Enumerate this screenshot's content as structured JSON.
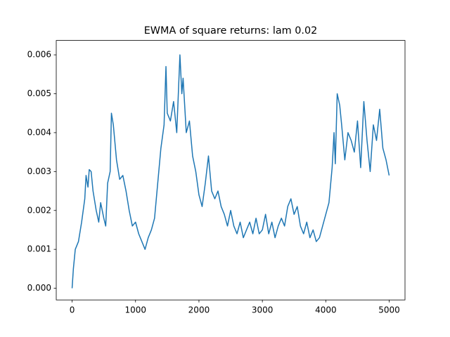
{
  "chart_data": {
    "type": "line",
    "title": "EWMA of square returns: lam 0.02",
    "x": [
      0,
      20,
      50,
      100,
      150,
      200,
      220,
      250,
      270,
      300,
      330,
      380,
      420,
      450,
      500,
      530,
      560,
      600,
      620,
      650,
      700,
      750,
      800,
      850,
      900,
      950,
      1000,
      1050,
      1100,
      1150,
      1200,
      1250,
      1300,
      1350,
      1400,
      1450,
      1480,
      1500,
      1550,
      1600,
      1650,
      1700,
      1730,
      1750,
      1800,
      1850,
      1900,
      1950,
      2000,
      2050,
      2100,
      2150,
      2200,
      2250,
      2300,
      2350,
      2400,
      2450,
      2500,
      2550,
      2600,
      2650,
      2700,
      2750,
      2800,
      2850,
      2900,
      2950,
      3000,
      3050,
      3100,
      3150,
      3200,
      3250,
      3300,
      3350,
      3400,
      3450,
      3500,
      3550,
      3600,
      3650,
      3700,
      3750,
      3800,
      3850,
      3900,
      3950,
      4000,
      4050,
      4100,
      4130,
      4150,
      4180,
      4220,
      4250,
      4300,
      4350,
      4400,
      4450,
      4500,
      4550,
      4600,
      4650,
      4700,
      4750,
      4800,
      4850,
      4900,
      4950,
      4999
    ],
    "series": [
      {
        "color": "#1f77b4",
        "values": [
          0,
          0.0005,
          0.001,
          0.0012,
          0.0017,
          0.0023,
          0.0029,
          0.0026,
          0.00305,
          0.003,
          0.0025,
          0.002,
          0.0017,
          0.0022,
          0.0018,
          0.0016,
          0.0027,
          0.003,
          0.0045,
          0.0042,
          0.0033,
          0.0028,
          0.0029,
          0.0025,
          0.002,
          0.0016,
          0.0017,
          0.0014,
          0.0012,
          0.001,
          0.0013,
          0.0015,
          0.0018,
          0.0027,
          0.0036,
          0.0042,
          0.0057,
          0.0045,
          0.0043,
          0.0048,
          0.004,
          0.006,
          0.005,
          0.0054,
          0.004,
          0.0043,
          0.0034,
          0.003,
          0.0024,
          0.0021,
          0.0027,
          0.0034,
          0.0025,
          0.0023,
          0.0025,
          0.0021,
          0.0019,
          0.0016,
          0.002,
          0.0016,
          0.0014,
          0.0017,
          0.0013,
          0.0015,
          0.0017,
          0.0014,
          0.0018,
          0.0014,
          0.0015,
          0.0019,
          0.0014,
          0.0017,
          0.0013,
          0.0016,
          0.0018,
          0.0016,
          0.0021,
          0.0023,
          0.0019,
          0.0021,
          0.0016,
          0.0014,
          0.0017,
          0.0013,
          0.0015,
          0.0012,
          0.0013,
          0.0016,
          0.0019,
          0.0022,
          0.0031,
          0.004,
          0.0032,
          0.005,
          0.0047,
          0.0042,
          0.0033,
          0.004,
          0.0038,
          0.0035,
          0.0043,
          0.0031,
          0.0048,
          0.0038,
          0.003,
          0.0042,
          0.0038,
          0.0046,
          0.0036,
          0.0033,
          0.0029
        ]
      }
    ],
    "xlim": [
      -250,
      5249
    ],
    "ylim": [
      -0.0003,
      0.00637
    ],
    "xticks": [
      0,
      1000,
      2000,
      3000,
      4000,
      5000
    ],
    "yticks": [
      {
        "value": 0,
        "label": "0.000"
      },
      {
        "value": 0.001,
        "label": "0.001"
      },
      {
        "value": 0.002,
        "label": "0.002"
      },
      {
        "value": 0.003,
        "label": "0.003"
      },
      {
        "value": 0.004,
        "label": "0.004"
      },
      {
        "value": 0.005,
        "label": "0.005"
      },
      {
        "value": 0.006,
        "label": "0.006"
      }
    ]
  }
}
